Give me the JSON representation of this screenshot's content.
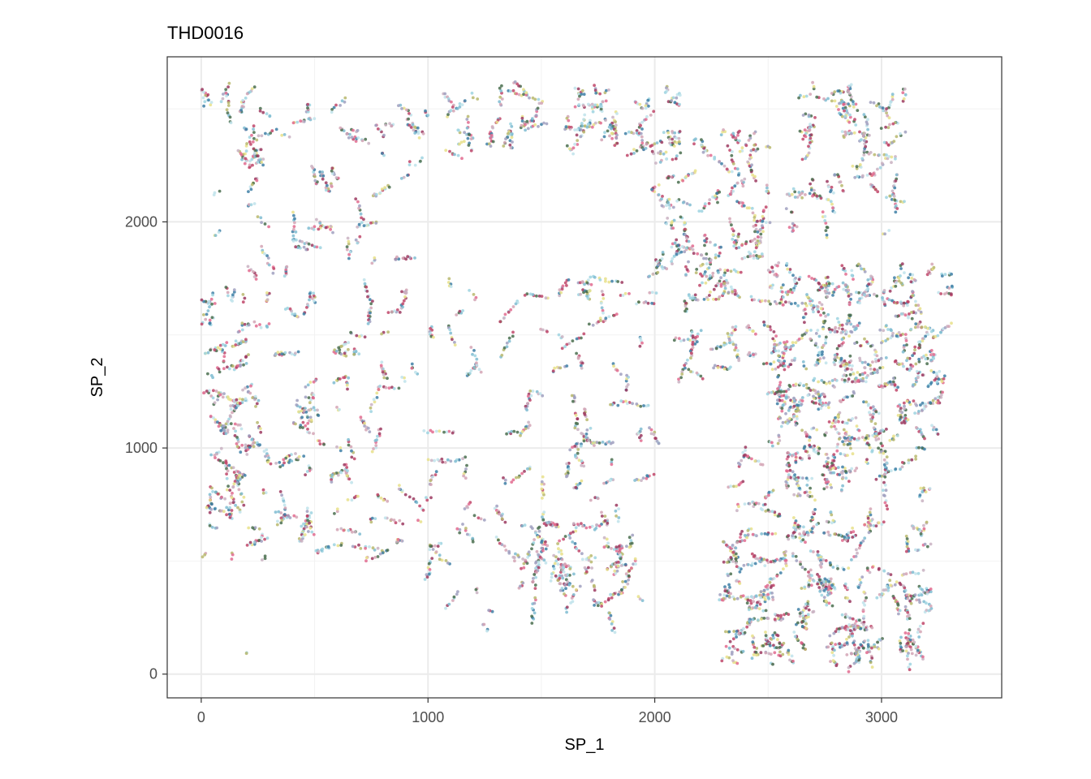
{
  "chart_data": {
    "type": "scatter",
    "title": "THD0016",
    "xlabel": "SP_1",
    "ylabel": "SP_2",
    "xlim": [
      -150,
      3530
    ],
    "ylim": [
      -105,
      2730
    ],
    "x_ticks": [
      0,
      1000,
      2000,
      3000
    ],
    "y_ticks": [
      0,
      1000,
      2000
    ],
    "x_tick_labels": [
      "0",
      "1000",
      "2000",
      "3000"
    ],
    "y_tick_labels": [
      "0",
      "1000",
      "2000"
    ],
    "grid": true,
    "legend": "none",
    "point_colors": [
      "#d4a5b5",
      "#c0476a",
      "#9ed4e0",
      "#3e7fa6",
      "#b8b86e",
      "#7fbcd1",
      "#9c3a60",
      "#4a6e4f",
      "#c9b2c2",
      "#e26b8f",
      "#bfe3eb",
      "#a0a0c0",
      "#e8e08a"
    ],
    "clusters": [
      {
        "x_range": [
          20,
          960
        ],
        "y_range": [
          520,
          2600
        ],
        "count": 1200
      },
      {
        "x_range": [
          30,
          200
        ],
        "y_range": [
          700,
          1500
        ],
        "count": 150
      },
      {
        "x_range": [
          1000,
          2100
        ],
        "y_range": [
          2300,
          2600
        ],
        "count": 400
      },
      {
        "x_range": [
          1000,
          2000
        ],
        "y_range": [
          200,
          1800
        ],
        "count": 700
      },
      {
        "x_range": [
          1400,
          1900
        ],
        "y_range": [
          300,
          700
        ],
        "count": 250
      },
      {
        "x_range": [
          2000,
          2500
        ],
        "y_range": [
          1700,
          2400
        ],
        "count": 450
      },
      {
        "x_range": [
          2500,
          3300
        ],
        "y_range": [
          1000,
          1800
        ],
        "count": 1100
      },
      {
        "x_range": [
          2300,
          3200
        ],
        "y_range": [
          30,
          1000
        ],
        "count": 1300
      },
      {
        "x_range": [
          2600,
          3100
        ],
        "y_range": [
          1900,
          2600
        ],
        "count": 350
      },
      {
        "x_range": [
          2100,
          2600
        ],
        "y_range": [
          1300,
          1700
        ],
        "count": 200
      },
      {
        "x_range": [
          150,
          200
        ],
        "y_range": [
          80,
          100
        ],
        "count": 2
      }
    ]
  }
}
